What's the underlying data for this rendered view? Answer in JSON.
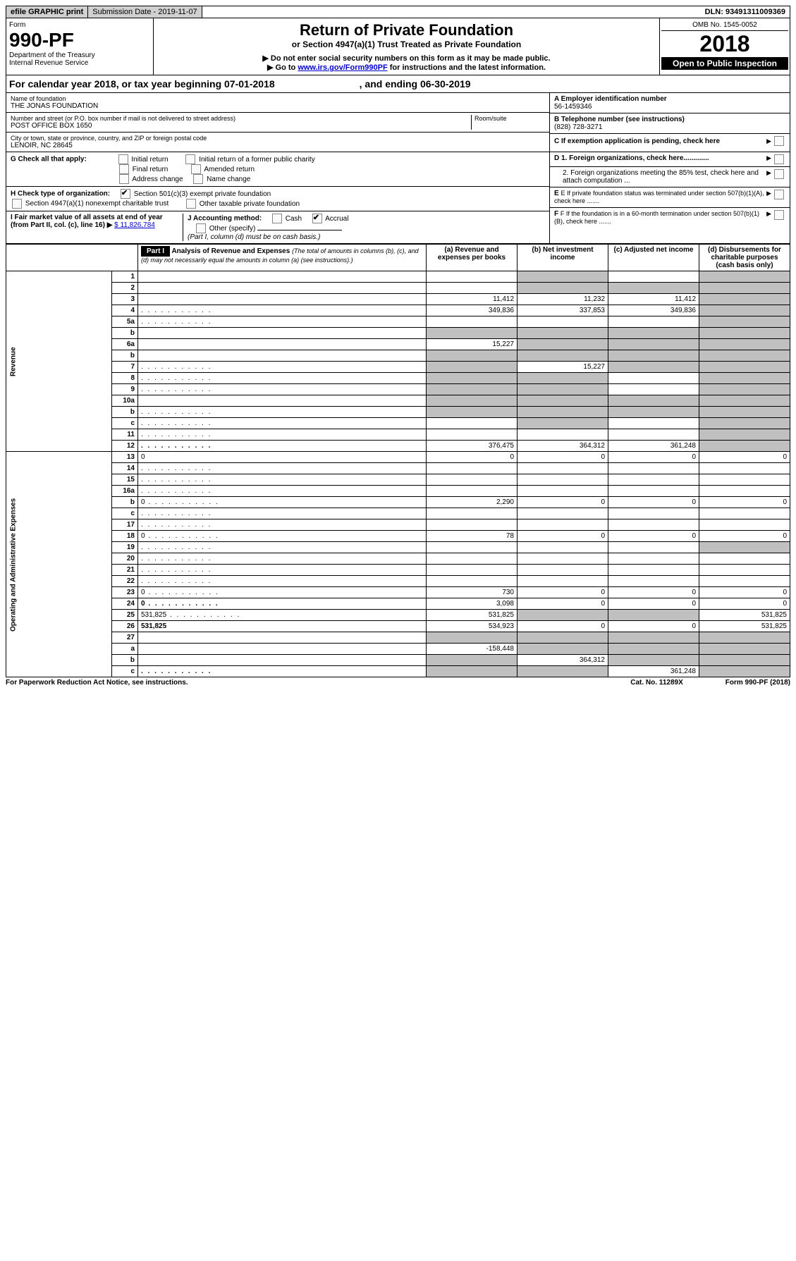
{
  "top": {
    "efile": "efile GRAPHIC print",
    "sub_label": "Submission Date - 2019-11-07",
    "dln": "DLN: 93491311009369"
  },
  "header": {
    "form_word": "Form",
    "form_num": "990-PF",
    "dept": "Department of the Treasury",
    "irs": "Internal Revenue Service",
    "title": "Return of Private Foundation",
    "subtitle": "or Section 4947(a)(1) Trust Treated as Private Foundation",
    "warn1": "Do not enter social security numbers on this form as it may be made public.",
    "warn2_a": "Go to ",
    "warn2_link": "www.irs.gov/Form990PF",
    "warn2_b": " for instructions and the latest information.",
    "omb": "OMB No. 1545-0052",
    "year": "2018",
    "open": "Open to Public Inspection"
  },
  "cal": {
    "a": "For calendar year 2018, or tax year beginning 07-01-2018",
    "b": ", and ending 06-30-2019"
  },
  "name_label": "Name of foundation",
  "name": "THE JONAS FOUNDATION",
  "addr_label": "Number and street (or P.O. box number if mail is not delivered to street address)",
  "addr": "POST OFFICE BOX 1650",
  "room_label": "Room/suite",
  "city_label": "City or town, state or province, country, and ZIP or foreign postal code",
  "city": "LENOIR, NC  28645",
  "ein_label": "A Employer identification number",
  "ein": "56-1459346",
  "tel_label": "B Telephone number (see instructions)",
  "tel": "(828) 728-3271",
  "c_label": "C  If exemption application is pending, check here",
  "d1": "D 1. Foreign organizations, check here.............",
  "d2": "2. Foreign organizations meeting the 85% test, check here and attach computation ...",
  "e_label": "E  If private foundation status was terminated under section 507(b)(1)(A), check here .......",
  "f_label": "F  If the foundation is in a 60-month termination under section 507(b)(1)(B), check here .......",
  "g_label": "G Check all that apply:",
  "g_opts": [
    "Initial return",
    "Initial return of a former public charity",
    "Final return",
    "Amended return",
    "Address change",
    "Name change"
  ],
  "h_label": "H Check type of organization:",
  "h_opts": [
    "Section 501(c)(3) exempt private foundation",
    "Section 4947(a)(1) nonexempt charitable trust",
    "Other taxable private foundation"
  ],
  "i_label": "I Fair market value of all assets at end of year (from Part II, col. (c), line 16) ▶",
  "i_val": "$  11,826,784",
  "j_label": "J Accounting method:",
  "j_opts": [
    "Cash",
    "Accrual",
    "Other (specify)"
  ],
  "j_note": "(Part I, column (d) must be on cash basis.)",
  "part1": {
    "label": "Part I",
    "title": "Analysis of Revenue and Expenses",
    "note": "(The total of amounts in columns (b), (c), and (d) may not necessarily equal the amounts in column (a) (see instructions).)",
    "col_a": "(a) Revenue and expenses per books",
    "col_b": "(b) Net investment income",
    "col_c": "(c) Adjusted net income",
    "col_d": "(d) Disbursements for charitable purposes (cash basis only)"
  },
  "side_rev": "Revenue",
  "side_exp": "Operating and Administrative Expenses",
  "rows": [
    {
      "n": "1",
      "d": "",
      "a": "",
      "b": "",
      "c": "",
      "gb": true,
      "gc": false,
      "gd": true
    },
    {
      "n": "2",
      "d": "",
      "a": "",
      "b": "",
      "c": "",
      "gb": true,
      "gc": true,
      "gd": true
    },
    {
      "n": "3",
      "d": "",
      "a": "11,412",
      "b": "11,232",
      "c": "11,412",
      "gd": true
    },
    {
      "n": "4",
      "d": "",
      "a": "349,836",
      "b": "337,853",
      "c": "349,836",
      "gd": true,
      "dots": true
    },
    {
      "n": "5a",
      "d": "",
      "a": "",
      "b": "",
      "c": "",
      "gd": true,
      "dots": true
    },
    {
      "n": "b",
      "d": "",
      "a": "",
      "b": "",
      "c": "",
      "ga": true,
      "gb": true,
      "gc": true,
      "gd": true
    },
    {
      "n": "6a",
      "d": "",
      "a": "15,227",
      "b": "",
      "c": "",
      "gb": true,
      "gc": true,
      "gd": true
    },
    {
      "n": "b",
      "d": "",
      "a": "",
      "b": "",
      "c": "",
      "ga": true,
      "gb": true,
      "gc": true,
      "gd": true
    },
    {
      "n": "7",
      "d": "",
      "a": "",
      "b": "15,227",
      "c": "",
      "ga": true,
      "gc": true,
      "gd": true,
      "dots": true
    },
    {
      "n": "8",
      "d": "",
      "a": "",
      "b": "",
      "c": "",
      "ga": true,
      "gb": true,
      "gd": true,
      "dots": true
    },
    {
      "n": "9",
      "d": "",
      "a": "",
      "b": "",
      "c": "",
      "ga": true,
      "gb": true,
      "gd": true,
      "dots": true
    },
    {
      "n": "10a",
      "d": "",
      "a": "",
      "b": "",
      "c": "",
      "ga": true,
      "gb": true,
      "gc": true,
      "gd": true
    },
    {
      "n": "b",
      "d": "",
      "a": "",
      "b": "",
      "c": "",
      "ga": true,
      "gb": true,
      "gc": true,
      "gd": true,
      "dots": true
    },
    {
      "n": "c",
      "d": "",
      "a": "",
      "b": "",
      "c": "",
      "gb": true,
      "gd": true,
      "dots": true
    },
    {
      "n": "11",
      "d": "",
      "a": "",
      "b": "",
      "c": "",
      "gd": true,
      "dots": true
    },
    {
      "n": "12",
      "d": "",
      "a": "376,475",
      "b": "364,312",
      "c": "361,248",
      "bold": true,
      "gd": true,
      "dots": true
    }
  ],
  "rows2": [
    {
      "n": "13",
      "d": "0",
      "a": "0",
      "b": "0",
      "c": "0"
    },
    {
      "n": "14",
      "d": "",
      "a": "",
      "b": "",
      "c": "",
      "dots": true
    },
    {
      "n": "15",
      "d": "",
      "a": "",
      "b": "",
      "c": "",
      "dots": true
    },
    {
      "n": "16a",
      "d": "",
      "a": "",
      "b": "",
      "c": "",
      "dots": true
    },
    {
      "n": "b",
      "d": "0",
      "a": "2,290",
      "b": "0",
      "c": "0",
      "dots": true
    },
    {
      "n": "c",
      "d": "",
      "a": "",
      "b": "",
      "c": "",
      "dots": true
    },
    {
      "n": "17",
      "d": "",
      "a": "",
      "b": "",
      "c": "",
      "dots": true
    },
    {
      "n": "18",
      "d": "0",
      "a": "78",
      "b": "0",
      "c": "0",
      "dots": true
    },
    {
      "n": "19",
      "d": "",
      "a": "",
      "b": "",
      "c": "",
      "gd": true,
      "dots": true
    },
    {
      "n": "20",
      "d": "",
      "a": "",
      "b": "",
      "c": "",
      "dots": true
    },
    {
      "n": "21",
      "d": "",
      "a": "",
      "b": "",
      "c": "",
      "dots": true
    },
    {
      "n": "22",
      "d": "",
      "a": "",
      "b": "",
      "c": "",
      "dots": true
    },
    {
      "n": "23",
      "d": "0",
      "a": "730",
      "b": "0",
      "c": "0",
      "dots": true
    },
    {
      "n": "24",
      "d": "0",
      "a": "3,098",
      "b": "0",
      "c": "0",
      "bold": true,
      "dots": true
    },
    {
      "n": "25",
      "d": "531,825",
      "a": "531,825",
      "b": "",
      "c": "",
      "gb": true,
      "gc": true,
      "dots": true
    },
    {
      "n": "26",
      "d": "531,825",
      "a": "534,923",
      "b": "0",
      "c": "0",
      "bold": true
    },
    {
      "n": "27",
      "d": "",
      "a": "",
      "b": "",
      "c": "",
      "ga": true,
      "gb": true,
      "gc": true,
      "gd": true
    },
    {
      "n": "a",
      "d": "",
      "a": "-158,448",
      "b": "",
      "c": "",
      "bold": true,
      "gb": true,
      "gc": true,
      "gd": true
    },
    {
      "n": "b",
      "d": "",
      "a": "",
      "b": "364,312",
      "c": "",
      "bold": true,
      "ga": true,
      "gc": true,
      "gd": true
    },
    {
      "n": "c",
      "d": "",
      "a": "",
      "b": "",
      "c": "361,248",
      "bold": true,
      "ga": true,
      "gb": true,
      "gd": true,
      "dots": true
    }
  ],
  "footer": {
    "left": "For Paperwork Reduction Act Notice, see instructions.",
    "mid": "Cat. No. 11289X",
    "right": "Form 990-PF (2018)"
  }
}
